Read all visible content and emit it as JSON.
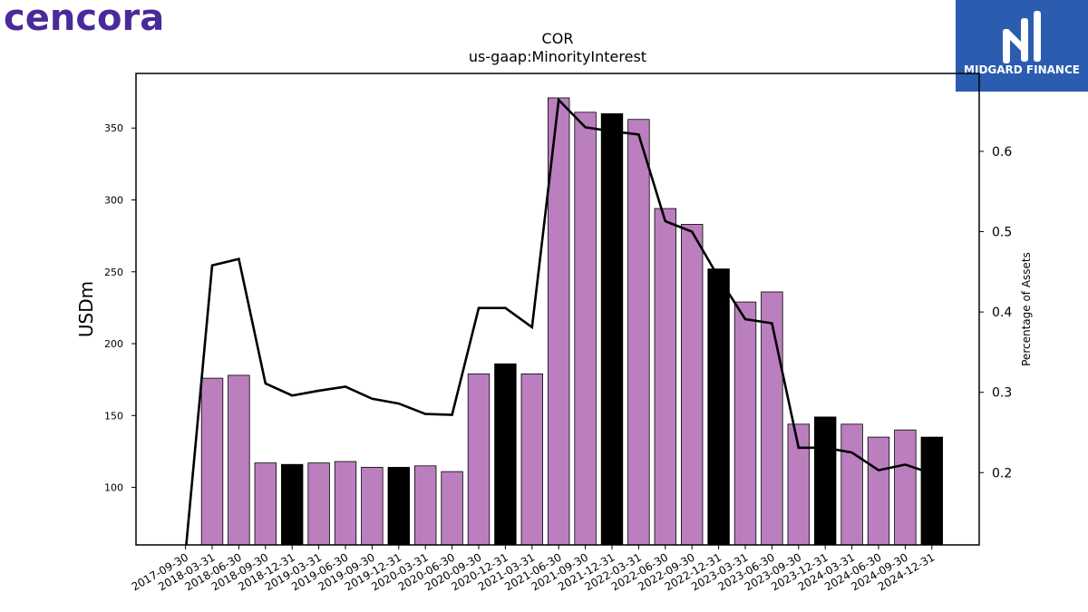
{
  "logo": {
    "text": "cencora",
    "color": "#4a2a9a"
  },
  "brand": {
    "text": "MIDGARD FINANCE",
    "icon": "midgard-logo-icon",
    "color": "#2b5cb0"
  },
  "chart_data": {
    "type": "bar",
    "title": "COR",
    "subtitle": "us-gaap:MinorityInterest",
    "ylabel": "USDm",
    "y2label": "Percentage of Assets",
    "ylim": [
      60,
      388
    ],
    "y2lim": [
      0.11,
      0.697
    ],
    "yticks": [
      100,
      150,
      200,
      250,
      300,
      350
    ],
    "y2ticks": [
      0.2,
      0.3,
      0.4,
      0.5,
      0.6
    ],
    "grid": false,
    "categories": [
      "2017-09-30",
      "2018-03-31",
      "2018-06-30",
      "2018-09-30",
      "2018-12-31",
      "2019-03-31",
      "2019-06-30",
      "2019-09-30",
      "2019-12-31",
      "2020-03-31",
      "2020-06-30",
      "2020-09-30",
      "2020-12-31",
      "2021-03-31",
      "2021-06-30",
      "2021-09-30",
      "2021-12-31",
      "2022-03-31",
      "2022-06-30",
      "2022-09-30",
      "2022-12-31",
      "2023-03-31",
      "2023-06-30",
      "2023-09-30",
      "2023-12-31",
      "2024-03-31",
      "2024-06-30",
      "2024-09-30",
      "2024-12-31"
    ],
    "bar_colors": {
      "default": "#bb7fbf",
      "fiscal_year_end": "#000000"
    },
    "series": [
      {
        "name": "USDm",
        "type": "bar",
        "values": [
          null,
          176,
          178,
          117,
          116,
          117,
          118,
          114,
          114,
          115,
          111,
          179,
          186,
          179,
          371,
          361,
          360,
          356,
          294,
          283,
          252,
          229,
          236,
          144,
          149,
          144,
          135,
          140,
          135
        ],
        "highlight": [
          false,
          false,
          false,
          false,
          true,
          false,
          false,
          false,
          true,
          false,
          false,
          false,
          true,
          false,
          false,
          false,
          true,
          false,
          false,
          false,
          true,
          false,
          false,
          false,
          true,
          false,
          false,
          false,
          true
        ]
      },
      {
        "name": "Percentage of Assets",
        "type": "line",
        "axis": "right",
        "color": "#000000",
        "values": [
          0.1,
          0.458,
          0.466,
          0.311,
          0.296,
          0.302,
          0.307,
          0.292,
          0.286,
          0.273,
          0.272,
          0.405,
          0.405,
          0.381,
          0.664,
          0.63,
          0.625,
          0.621,
          0.513,
          0.5,
          0.443,
          0.391,
          0.386,
          0.231,
          0.231,
          0.225,
          0.203,
          0.21,
          0.199
        ]
      }
    ]
  }
}
